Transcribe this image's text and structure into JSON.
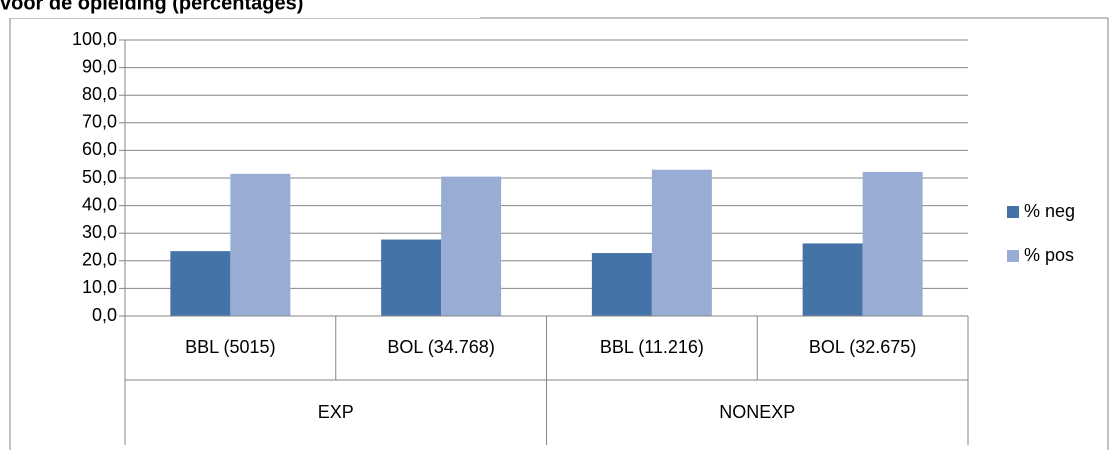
{
  "chart_data": {
    "type": "bar",
    "title": "voor de opleiding (percentages)",
    "categories": [
      "BBL (5015)",
      "BOL (34.768)",
      "BBL (11.216)",
      "BOL (32.675)"
    ],
    "groups": [
      "EXP",
      "NONEXP"
    ],
    "series": [
      {
        "name": "% neg",
        "color": "#4572a7",
        "values": [
          23.5,
          27.7,
          22.8,
          26.3
        ]
      },
      {
        "name": "% pos",
        "color": "#98acd4",
        "values": [
          51.5,
          50.5,
          53.0,
          52.2
        ]
      }
    ],
    "ylim": [
      0,
      100
    ],
    "yticks": [
      {
        "value": 0,
        "label": "0,0"
      },
      {
        "value": 10,
        "label": "10,0"
      },
      {
        "value": 20,
        "label": "20,0"
      },
      {
        "value": 30,
        "label": "30,0"
      },
      {
        "value": 40,
        "label": "40,0"
      },
      {
        "value": 50,
        "label": "50,0"
      },
      {
        "value": 60,
        "label": "60,0"
      },
      {
        "value": 70,
        "label": "70,0"
      },
      {
        "value": 80,
        "label": "80,0"
      },
      {
        "value": 90,
        "label": "90,0"
      },
      {
        "value": 100,
        "label": "100,0"
      }
    ],
    "grid": true,
    "legend": "right"
  }
}
